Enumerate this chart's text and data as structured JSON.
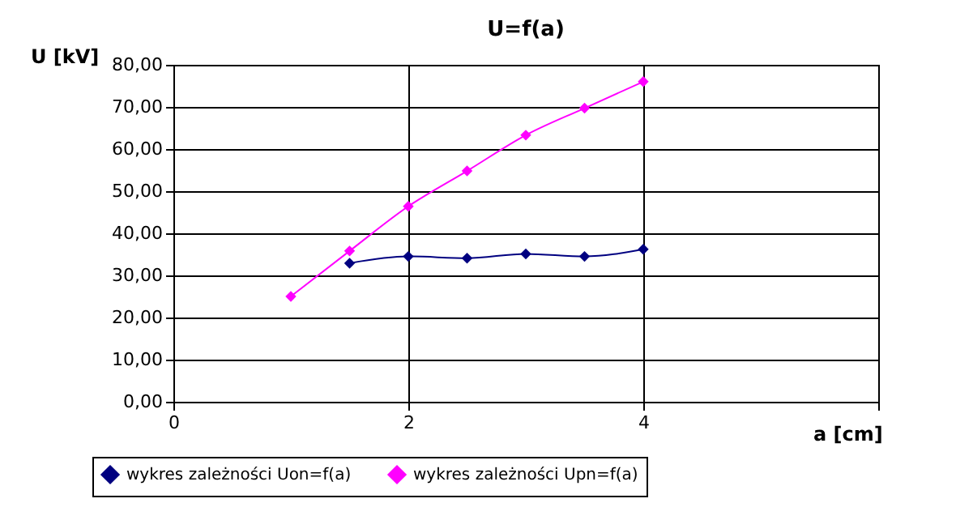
{
  "chart_data": {
    "type": "line",
    "title": "U=f(a)",
    "xlabel": "a [cm]",
    "ylabel": "U [kV]",
    "xlim": [
      0,
      6
    ],
    "xticks": [
      0,
      2,
      4,
      {
        "value": 6,
        "label": null
      }
    ],
    "ylim": [
      0,
      80
    ],
    "yticks": [
      {
        "value": 0,
        "label": "0,00"
      },
      {
        "value": 10,
        "label": "10,00"
      },
      {
        "value": 20,
        "label": "20,00"
      },
      {
        "value": 30,
        "label": "30,00"
      },
      {
        "value": 40,
        "label": "40,00"
      },
      {
        "value": 50,
        "label": "50,00"
      },
      {
        "value": 60,
        "label": "60,00"
      },
      {
        "value": 70,
        "label": "70,00"
      },
      {
        "value": 80,
        "label": "80,00"
      }
    ],
    "grid": true,
    "legend": "bottom",
    "marker": "diamond",
    "line_style": "solid",
    "series": [
      {
        "name": "wykres zależności Uon=f(a)",
        "color": "#000080",
        "x": [
          1.5,
          2,
          2.5,
          3,
          3.5,
          4
        ],
        "values": [
          32.9,
          34.5,
          34.1,
          35.1,
          34.5,
          36.2
        ]
      },
      {
        "name": "wykres zależności Upn=f(a)",
        "color": "#ff00ff",
        "x": [
          1,
          1.5,
          2,
          2.5,
          3,
          3.5,
          4
        ],
        "values": [
          25.0,
          35.8,
          46.4,
          54.8,
          63.3,
          69.7,
          76.0
        ]
      }
    ]
  }
}
